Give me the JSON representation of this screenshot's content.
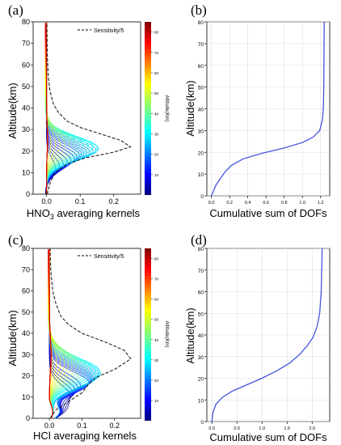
{
  "chart_data": [
    {
      "panel": "(a)",
      "type": "line",
      "ylabel": "Altitude(km)",
      "xlabel_main": "HNO",
      "xlabel_sub": "3",
      "xlabel_rest": " averaging kernels",
      "ylim": [
        0,
        80
      ],
      "yticks": [
        "0",
        "10",
        "20",
        "30",
        "40",
        "50",
        "60",
        "70",
        "80"
      ],
      "xlim": [
        -0.04,
        0.28
      ],
      "xticks": [
        "0.0",
        "0.1",
        "0.2"
      ],
      "xtick_values": [
        0.0,
        0.1,
        0.2
      ],
      "legend": "Sensitivity/5",
      "colorbar_label": "Altitude(Km)",
      "colorbar_ticks": [
        "10",
        "20",
        "30",
        "40",
        "50",
        "60",
        "70",
        "80"
      ],
      "kernel_style": "hno3",
      "sensitivity": [
        [
          0.002,
          0
        ],
        [
          0.01,
          5
        ],
        [
          0.025,
          10
        ],
        [
          0.06,
          14
        ],
        [
          0.12,
          17
        ],
        [
          0.2,
          19.5
        ],
        [
          0.25,
          22
        ],
        [
          0.22,
          25
        ],
        [
          0.16,
          28
        ],
        [
          0.1,
          31
        ],
        [
          0.06,
          34
        ],
        [
          0.035,
          38
        ],
        [
          0.02,
          42
        ],
        [
          0.01,
          48
        ],
        [
          0.005,
          55
        ],
        [
          0.002,
          65
        ],
        [
          0.001,
          80
        ]
      ]
    },
    {
      "panel": "(b)",
      "type": "line",
      "ylabel": "Altitude(km)",
      "xlabel": "Cumulative sum of DOFs",
      "ylim": [
        0,
        80
      ],
      "yticks": [
        "0",
        "10",
        "20",
        "30",
        "40",
        "50",
        "60",
        "70",
        "80"
      ],
      "xlim": [
        -0.05,
        1.3
      ],
      "xticks": [
        "0.0",
        "0.2",
        "0.4",
        "0.6",
        "0.8",
        "1.0",
        "1.2"
      ],
      "xtick_values": [
        0.0,
        0.2,
        0.4,
        0.6,
        0.8,
        1.0,
        1.2
      ],
      "series": [
        [
          0.0,
          0
        ],
        [
          0.02,
          2
        ],
        [
          0.05,
          5
        ],
        [
          0.1,
          8
        ],
        [
          0.15,
          11
        ],
        [
          0.22,
          14
        ],
        [
          0.35,
          17
        ],
        [
          0.55,
          19.5
        ],
        [
          0.8,
          22
        ],
        [
          1.0,
          24.5
        ],
        [
          1.12,
          27
        ],
        [
          1.19,
          30
        ],
        [
          1.22,
          35
        ],
        [
          1.23,
          40
        ],
        [
          1.235,
          50
        ],
        [
          1.24,
          80
        ]
      ]
    },
    {
      "panel": "(c)",
      "type": "line",
      "ylabel": "Altitude(km)",
      "xlabel": "HCl averaging kernels",
      "ylim": [
        0,
        80
      ],
      "yticks": [
        "0",
        "10",
        "20",
        "30",
        "40",
        "50",
        "60",
        "70",
        "80"
      ],
      "xlim": [
        -0.05,
        0.28
      ],
      "xticks": [
        "0.0",
        "0.1",
        "0.2"
      ],
      "xtick_values": [
        0.0,
        0.1,
        0.2
      ],
      "legend": "Sensitivity/5",
      "colorbar_label": "Altitude(Km)",
      "colorbar_ticks": [
        "10",
        "20",
        "30",
        "40",
        "50",
        "60",
        "70",
        "80"
      ],
      "kernel_style": "hcl",
      "sensitivity": [
        [
          0.002,
          0
        ],
        [
          0.02,
          4
        ],
        [
          0.06,
          8
        ],
        [
          0.1,
          12
        ],
        [
          0.12,
          16
        ],
        [
          0.14,
          19
        ],
        [
          0.2,
          23
        ],
        [
          0.25,
          28
        ],
        [
          0.23,
          32
        ],
        [
          0.17,
          36
        ],
        [
          0.1,
          40
        ],
        [
          0.06,
          44
        ],
        [
          0.035,
          48
        ],
        [
          0.02,
          54
        ],
        [
          0.01,
          60
        ],
        [
          0.004,
          70
        ],
        [
          0.002,
          80
        ]
      ]
    },
    {
      "panel": "(d)",
      "type": "line",
      "ylabel": "Altitude(km)",
      "xlabel": "Cumulative sum of DOFs",
      "ylim": [
        0,
        80
      ],
      "yticks": [
        "0",
        "10",
        "20",
        "30",
        "40",
        "50",
        "60",
        "70",
        "80"
      ],
      "xlim": [
        -0.1,
        2.35
      ],
      "xticks": [
        "0.0",
        "0.5",
        "1.0",
        "1.5",
        "2.0"
      ],
      "xtick_values": [
        0.0,
        0.5,
        1.0,
        1.5,
        2.0
      ],
      "series": [
        [
          0.0,
          0
        ],
        [
          0.02,
          4
        ],
        [
          0.08,
          8
        ],
        [
          0.2,
          11
        ],
        [
          0.4,
          14
        ],
        [
          0.7,
          17
        ],
        [
          1.0,
          20
        ],
        [
          1.3,
          23.5
        ],
        [
          1.55,
          27
        ],
        [
          1.75,
          31
        ],
        [
          1.9,
          35
        ],
        [
          2.02,
          39
        ],
        [
          2.1,
          44
        ],
        [
          2.15,
          50
        ],
        [
          2.18,
          60
        ],
        [
          2.2,
          80
        ]
      ]
    }
  ]
}
